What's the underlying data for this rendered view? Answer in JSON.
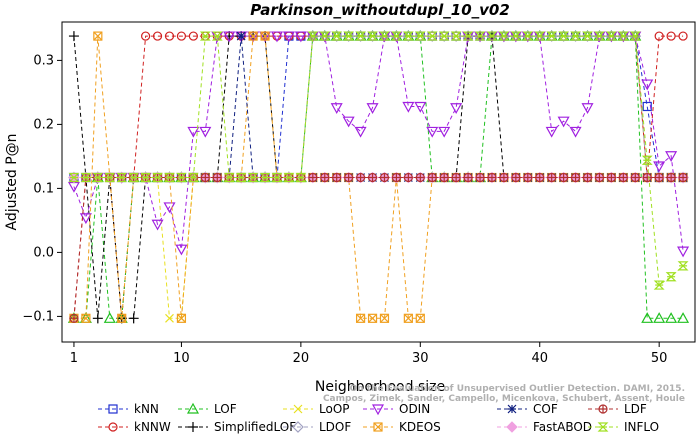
{
  "chart_data": {
    "type": "line",
    "title": "Parkinson_withoutdupl_10_v02",
    "xlabel": "Neighborhood size",
    "ylabel": "Adjusted P@n",
    "xlim": [
      0,
      53
    ],
    "ylim": [
      -0.14,
      0.36
    ],
    "x_ticks": [
      1,
      10,
      20,
      30,
      40,
      50
    ],
    "y_ticks": [
      -0.1,
      0.0,
      0.1,
      0.2,
      0.3
    ],
    "x_tick_labels": [
      "1",
      "10",
      "20",
      "30",
      "40",
      "50"
    ],
    "y_tick_labels": [
      "−0.1",
      "0.0",
      "0.1",
      "0.2",
      "0.3"
    ],
    "grid": false,
    "legend_position": "bottom",
    "credit": "Campos, Zimek, Sander, Campello, Micenkova, Schubert, Assent, Houle",
    "credit_line2": "On the Evaluation of Unsupervised Outlier Detection. DAMI, 2015.",
    "x": [
      1,
      2,
      3,
      4,
      5,
      6,
      7,
      8,
      9,
      10,
      11,
      12,
      13,
      14,
      15,
      16,
      17,
      18,
      19,
      20,
      21,
      22,
      23,
      24,
      25,
      26,
      27,
      28,
      29,
      30,
      31,
      32,
      33,
      34,
      35,
      36,
      37,
      38,
      39,
      40,
      41,
      42,
      43,
      44,
      45,
      46,
      47,
      48,
      49,
      50,
      51,
      52
    ],
    "series": [
      {
        "name": "kNN",
        "color": "#2030d0",
        "marker": "square",
        "values": [
          0.117,
          0.117,
          0.117,
          0.117,
          0.117,
          0.117,
          0.117,
          0.117,
          0.117,
          0.117,
          0.117,
          0.117,
          0.117,
          0.117,
          0.117,
          0.117,
          0.117,
          0.117,
          0.338,
          0.338,
          0.338,
          0.338,
          0.338,
          0.338,
          0.338,
          0.338,
          0.338,
          0.338,
          0.338,
          0.338,
          0.338,
          0.338,
          0.338,
          0.338,
          0.338,
          0.338,
          0.338,
          0.338,
          0.338,
          0.338,
          0.338,
          0.338,
          0.338,
          0.338,
          0.338,
          0.338,
          0.338,
          0.338,
          0.228,
          0.117,
          0.117,
          0.117
        ]
      },
      {
        "name": "kNNW",
        "color": "#d02020",
        "marker": "circle",
        "values": [
          -0.103,
          0.117,
          0.117,
          0.117,
          -0.103,
          0.117,
          0.338,
          0.338,
          0.338,
          0.338,
          0.338,
          0.338,
          0.338,
          0.338,
          0.338,
          0.338,
          0.338,
          0.338,
          0.338,
          0.338,
          0.338,
          0.338,
          0.338,
          0.338,
          0.338,
          0.338,
          0.338,
          0.338,
          0.338,
          0.338,
          0.338,
          0.338,
          0.338,
          0.338,
          0.338,
          0.338,
          0.338,
          0.338,
          0.338,
          0.338,
          0.338,
          0.338,
          0.338,
          0.338,
          0.338,
          0.338,
          0.338,
          0.338,
          0.117,
          0.338,
          0.338,
          0.338
        ]
      },
      {
        "name": "LOF",
        "color": "#20c020",
        "marker": "triangle-up",
        "values": [
          -0.103,
          -0.103,
          0.117,
          -0.103,
          -0.103,
          0.117,
          0.117,
          0.117,
          0.117,
          0.117,
          0.117,
          0.117,
          0.117,
          0.117,
          0.117,
          0.117,
          0.117,
          0.117,
          0.117,
          0.117,
          0.338,
          0.338,
          0.338,
          0.338,
          0.338,
          0.338,
          0.338,
          0.338,
          0.338,
          0.338,
          0.117,
          0.117,
          0.117,
          0.117,
          0.117,
          0.338,
          0.338,
          0.338,
          0.338,
          0.338,
          0.338,
          0.338,
          0.338,
          0.338,
          0.338,
          0.338,
          0.338,
          0.338,
          -0.103,
          -0.103,
          -0.103,
          -0.103
        ]
      },
      {
        "name": "SimplifiedLOF",
        "color": "#000000",
        "marker": "plus",
        "values": [
          0.338,
          0.117,
          -0.103,
          0.117,
          -0.103,
          -0.103,
          0.117,
          0.117,
          0.117,
          0.117,
          0.117,
          0.117,
          0.117,
          0.338,
          0.338,
          0.338,
          0.338,
          0.117,
          0.117,
          0.117,
          0.117,
          0.117,
          0.117,
          0.117,
          0.117,
          0.117,
          0.117,
          0.117,
          0.117,
          0.117,
          0.117,
          0.117,
          0.117,
          0.338,
          0.338,
          0.338,
          0.117,
          0.117,
          0.117,
          0.117,
          0.117,
          0.117,
          0.117,
          0.117,
          0.117,
          0.117,
          0.117,
          0.117,
          0.117,
          0.117,
          0.117,
          0.117
        ]
      },
      {
        "name": "LoOP",
        "color": "#e8e020",
        "marker": "x",
        "values": [
          0.117,
          0.117,
          0.117,
          0.117,
          0.117,
          0.117,
          0.117,
          0.117,
          -0.103,
          -0.103,
          0.117,
          0.117,
          0.117,
          0.117,
          0.117,
          0.117,
          0.117,
          0.117,
          0.117,
          0.117,
          0.338,
          0.338,
          0.338,
          0.338,
          0.338,
          0.338,
          0.338,
          0.338,
          0.338,
          0.338,
          0.338,
          0.338,
          0.338,
          0.338,
          0.338,
          0.338,
          0.338,
          0.338,
          0.338,
          0.338,
          0.338,
          0.338,
          0.338,
          0.338,
          0.338,
          0.338,
          0.338,
          0.338,
          0.117,
          0.117,
          0.117,
          0.117
        ]
      },
      {
        "name": "LDOF",
        "color": "#a0a0c0",
        "marker": "diamond",
        "values": [
          0.117,
          0.117,
          0.117,
          0.117,
          0.117,
          0.117,
          0.117,
          0.117,
          0.117,
          0.117,
          0.117,
          0.117,
          0.117,
          0.117,
          0.117,
          0.117,
          0.117,
          0.117,
          0.117,
          0.117,
          0.338,
          0.338,
          0.338,
          0.338,
          0.338,
          0.338,
          0.338,
          0.338,
          0.338,
          0.338,
          0.338,
          0.338,
          0.338,
          0.338,
          0.338,
          0.338,
          0.338,
          0.338,
          0.338,
          0.338,
          0.338,
          0.338,
          0.338,
          0.338,
          0.338,
          0.338,
          0.338,
          0.338,
          0.117,
          0.117,
          0.117,
          0.117
        ]
      },
      {
        "name": "ODIN",
        "color": "#a020e0",
        "marker": "triangle-down",
        "values": [
          0.103,
          0.054,
          0.117,
          0.117,
          0.117,
          0.117,
          0.117,
          0.044,
          0.071,
          0.005,
          0.189,
          0.189,
          0.338,
          0.338,
          0.338,
          0.338,
          0.338,
          0.338,
          0.338,
          0.338,
          0.338,
          0.338,
          0.226,
          0.205,
          0.189,
          0.226,
          0.338,
          0.338,
          0.228,
          0.228,
          0.189,
          0.189,
          0.226,
          0.338,
          0.338,
          0.338,
          0.338,
          0.338,
          0.338,
          0.338,
          0.189,
          0.205,
          0.189,
          0.226,
          0.338,
          0.338,
          0.338,
          0.338,
          0.263,
          0.135,
          0.151,
          0.002
        ]
      },
      {
        "name": "KDEOS",
        "color": "#f0a020",
        "marker": "square-x",
        "values": [
          -0.103,
          -0.103,
          0.338,
          0.117,
          -0.103,
          0.117,
          0.117,
          0.117,
          0.117,
          -0.103,
          0.117,
          0.117,
          0.117,
          0.117,
          0.117,
          0.338,
          0.338,
          0.117,
          0.117,
          0.117,
          0.117,
          0.117,
          0.117,
          0.117,
          -0.103,
          -0.103,
          -0.103,
          0.117,
          -0.103,
          -0.103,
          0.117,
          0.117,
          0.117,
          0.117,
          0.117,
          0.117,
          0.117,
          0.117,
          0.117,
          0.117,
          0.117,
          0.117,
          0.117,
          0.117,
          0.117,
          0.117,
          0.117,
          0.117,
          0.117,
          0.117,
          0.117,
          0.117
        ]
      },
      {
        "name": "COF",
        "color": "#102080",
        "marker": "asterisk",
        "values": [
          0.117,
          0.117,
          0.117,
          0.117,
          0.117,
          0.117,
          0.117,
          0.117,
          0.117,
          0.117,
          0.117,
          0.117,
          0.117,
          0.117,
          0.338,
          0.117,
          0.117,
          0.117,
          0.117,
          0.117,
          0.117,
          0.117,
          0.117,
          0.117,
          0.117,
          0.117,
          0.117,
          0.117,
          0.117,
          0.117,
          0.117,
          0.117,
          0.117,
          0.117,
          0.117,
          0.117,
          0.117,
          0.117,
          0.117,
          0.117,
          0.117,
          0.117,
          0.117,
          0.117,
          0.117,
          0.117,
          0.117,
          0.117,
          0.117,
          0.117,
          0.117,
          0.117
        ]
      },
      {
        "name": "FastABOD",
        "color": "#f0a0e0",
        "marker": "diamond-filled",
        "values": [
          0.117,
          0.117,
          0.117,
          0.117,
          0.117,
          0.117,
          0.117,
          0.117,
          0.117,
          0.117,
          0.117,
          0.117,
          0.117,
          0.117,
          0.117,
          0.117,
          0.117,
          0.117,
          0.117,
          0.117,
          0.117,
          0.117,
          0.117,
          0.117,
          0.117,
          0.117,
          0.117,
          0.117,
          0.117,
          0.117,
          0.117,
          0.117,
          0.117,
          0.117,
          0.117,
          0.117,
          0.117,
          0.117,
          0.117,
          0.117,
          0.117,
          0.117,
          0.117,
          0.117,
          0.117,
          0.117,
          0.117,
          0.117,
          0.117,
          0.117,
          0.117,
          0.117
        ]
      },
      {
        "name": "LDF",
        "color": "#b03030",
        "marker": "circle-plus",
        "values": [
          -0.103,
          0.117,
          0.117,
          0.117,
          0.117,
          0.117,
          0.117,
          0.117,
          0.117,
          0.117,
          0.117,
          0.117,
          0.117,
          0.117,
          0.117,
          0.117,
          0.117,
          0.117,
          0.117,
          0.117,
          0.117,
          0.117,
          0.117,
          0.117,
          0.117,
          0.117,
          0.117,
          0.117,
          0.117,
          0.117,
          0.117,
          0.117,
          0.117,
          0.117,
          0.117,
          0.117,
          0.117,
          0.117,
          0.117,
          0.117,
          0.117,
          0.117,
          0.117,
          0.117,
          0.117,
          0.117,
          0.117,
          0.117,
          0.117,
          0.117,
          0.117,
          0.117
        ]
      },
      {
        "name": "INFLO",
        "color": "#a0e020",
        "marker": "hourglass",
        "values": [
          0.117,
          0.117,
          0.117,
          0.117,
          0.117,
          0.117,
          0.117,
          0.117,
          0.117,
          0.117,
          0.117,
          0.338,
          0.338,
          0.117,
          0.117,
          0.117,
          0.117,
          0.117,
          0.117,
          0.117,
          0.338,
          0.338,
          0.338,
          0.338,
          0.338,
          0.338,
          0.338,
          0.338,
          0.338,
          0.338,
          0.338,
          0.338,
          0.338,
          0.338,
          0.338,
          0.338,
          0.338,
          0.338,
          0.338,
          0.338,
          0.338,
          0.338,
          0.338,
          0.338,
          0.338,
          0.338,
          0.338,
          0.338,
          0.144,
          -0.051,
          -0.038,
          -0.021
        ]
      }
    ]
  }
}
